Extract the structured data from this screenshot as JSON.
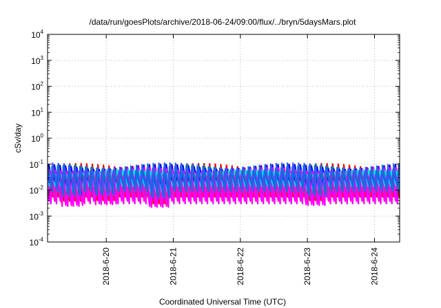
{
  "chart_data": {
    "type": "line",
    "title": "/data/run/goesPlots/archive/2018-06-24/09:00/flux/../bryn/5daysMars.plot",
    "xlabel": "Coordinated Universal Time (UTC)",
    "ylabel": "cSv/day",
    "y_scale": "log",
    "ylim": [
      0.0001,
      10000
    ],
    "yticks": [
      {
        "base": "10",
        "exp": "-4",
        "value": 0.0001
      },
      {
        "base": "10",
        "exp": "-3",
        "value": 0.001
      },
      {
        "base": "10",
        "exp": "-2",
        "value": 0.01
      },
      {
        "base": "10",
        "exp": "-1",
        "value": 0.1
      },
      {
        "base": "10",
        "exp": "0",
        "value": 1
      },
      {
        "base": "10",
        "exp": "1",
        "value": 10
      },
      {
        "base": "10",
        "exp": "2",
        "value": 100
      },
      {
        "base": "10",
        "exp": "3",
        "value": 1000
      },
      {
        "base": "10",
        "exp": "4",
        "value": 10000
      }
    ],
    "xlim": [
      "2018-06-19T03:00",
      "2018-06-24T09:00"
    ],
    "xticks": [
      "2018-6-20",
      "2018-6-21",
      "2018-6-22",
      "2018-6-23",
      "2018-6-24"
    ],
    "xtick_dates": [
      "2018-06-20",
      "2018-06-21",
      "2018-06-22",
      "2018-06-23",
      "2018-06-24"
    ],
    "grid": true,
    "legend": "none",
    "period_hours": 2,
    "series": [
      {
        "color": "#ff0000",
        "peak": 0.085,
        "trough": 0.0055,
        "dips": [
          0.0038,
          0.004,
          0.003,
          0.004
        ]
      },
      {
        "color": "#00c000",
        "peak": 0.075,
        "trough": 0.0095,
        "dips": [
          0.006,
          0.0065,
          0.005,
          0.006
        ]
      },
      {
        "color": "#0000ff",
        "peak": 0.08,
        "trough": 0.0075,
        "dips": [
          0.005,
          0.0055,
          0.004,
          0.005
        ]
      },
      {
        "color": "#ff00ff",
        "peak": 0.06,
        "trough": 0.0038,
        "dips": [
          0.0026,
          0.003,
          0.0024,
          0.0028
        ]
      },
      {
        "color": "#00e0e0",
        "peak": 0.05,
        "trough": 0.014,
        "dips": [
          0.009,
          0.0095,
          0.008,
          0.009
        ]
      },
      {
        "color": "#606060",
        "peak": 0.03,
        "trough": 0.005,
        "dips": [
          0.0035,
          0.004,
          0.0032,
          0.0038
        ]
      },
      {
        "color": "#ff00ff",
        "peak": 0.045,
        "trough": 0.003,
        "dips": [
          0.0024,
          0.0028,
          0.0022,
          0.0026
        ]
      },
      {
        "color": "#0060ff",
        "peak": 0.07,
        "trough": 0.011,
        "dips": [
          0.007,
          0.0075,
          0.006,
          0.007
        ]
      },
      {
        "color": "#3060e0",
        "peak": 0.09,
        "trough": 0.009,
        "dips": [
          0.006,
          0.0065,
          0.005,
          0.006
        ]
      }
    ],
    "dip_times": [
      "2018-06-19T12:00",
      "2018-06-20T00:00",
      "2018-06-20T19:00",
      "2018-06-23T03:00"
    ]
  }
}
